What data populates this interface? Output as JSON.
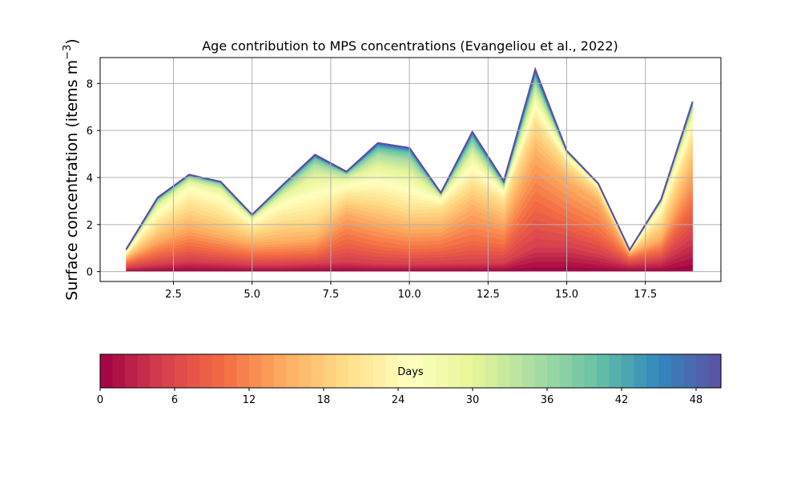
{
  "chart_data": {
    "type": "area",
    "title": "Age contribution to MPS concentrations (Evangeliou et al., 2022)",
    "xlabel": "",
    "ylabel_main": "Surface concentration (items m",
    "ylabel_sup": "−3",
    "ylabel_close": ")",
    "xlim": [
      0.17,
      19.9
    ],
    "ylim": [
      -0.42,
      9.1
    ],
    "xticks": [
      2.5,
      5.0,
      7.5,
      10.0,
      12.5,
      15.0,
      17.5
    ],
    "xtick_labels": [
      "2.5",
      "5.0",
      "7.5",
      "10.0",
      "12.5",
      "15.0",
      "17.5"
    ],
    "yticks": [
      0,
      2,
      4,
      6,
      8
    ],
    "ytick_labels": [
      "0",
      "2",
      "4",
      "6",
      "8"
    ],
    "grid": true,
    "x": [
      1,
      2,
      3,
      4,
      5,
      6,
      7,
      8,
      9,
      10,
      11,
      12,
      13,
      14,
      15,
      16,
      17,
      18,
      19
    ],
    "totals": [
      0.95,
      3.15,
      4.12,
      3.82,
      2.42,
      3.72,
      4.97,
      4.25,
      5.47,
      5.26,
      3.35,
      5.94,
      3.85,
      8.59,
      5.14,
      3.75,
      0.92,
      3.07,
      7.22
    ],
    "day_count": 50,
    "cumulative_fractions": {
      "days": [
        0,
        5,
        10,
        15,
        20,
        25,
        30,
        35,
        40,
        45,
        50
      ],
      "profiles": [
        [
          0,
          0.18,
          0.4,
          0.6,
          0.75,
          0.87,
          0.93,
          0.97,
          0.99,
          1,
          1
        ],
        [
          0,
          0.1,
          0.25,
          0.42,
          0.62,
          0.8,
          0.9,
          0.95,
          0.98,
          0.995,
          1
        ],
        [
          0,
          0.11,
          0.27,
          0.45,
          0.68,
          0.86,
          0.93,
          0.97,
          0.99,
          0.995,
          1
        ],
        [
          0,
          0.1,
          0.24,
          0.4,
          0.62,
          0.82,
          0.92,
          0.96,
          0.99,
          0.995,
          1
        ],
        [
          0,
          0.12,
          0.3,
          0.5,
          0.72,
          0.88,
          0.94,
          0.97,
          0.99,
          0.995,
          1
        ],
        [
          0,
          0.08,
          0.2,
          0.35,
          0.58,
          0.78,
          0.88,
          0.94,
          0.98,
          0.995,
          1
        ],
        [
          0,
          0.07,
          0.16,
          0.28,
          0.46,
          0.66,
          0.82,
          0.92,
          0.97,
          0.99,
          1
        ],
        [
          0,
          0.1,
          0.33,
          0.58,
          0.74,
          0.86,
          0.93,
          0.97,
          0.99,
          0.995,
          1
        ],
        [
          0,
          0.06,
          0.2,
          0.38,
          0.55,
          0.7,
          0.82,
          0.91,
          0.96,
          0.99,
          1
        ],
        [
          0,
          0.06,
          0.18,
          0.34,
          0.5,
          0.66,
          0.8,
          0.9,
          0.96,
          0.99,
          1
        ],
        [
          0,
          0.1,
          0.3,
          0.55,
          0.8,
          0.91,
          0.95,
          0.98,
          0.99,
          0.995,
          1
        ],
        [
          0,
          0.06,
          0.22,
          0.45,
          0.62,
          0.75,
          0.84,
          0.91,
          0.96,
          0.99,
          1
        ],
        [
          0,
          0.1,
          0.3,
          0.55,
          0.78,
          0.88,
          0.92,
          0.95,
          0.97,
          0.99,
          1
        ],
        [
          0,
          0.12,
          0.35,
          0.58,
          0.74,
          0.82,
          0.88,
          0.93,
          0.96,
          0.985,
          1
        ],
        [
          0,
          0.2,
          0.45,
          0.75,
          0.9,
          0.95,
          0.98,
          0.99,
          0.995,
          1,
          1
        ],
        [
          0,
          0.2,
          0.45,
          0.8,
          0.93,
          0.97,
          0.99,
          0.995,
          1,
          1,
          1
        ],
        [
          0,
          0.35,
          0.65,
          0.85,
          0.95,
          0.98,
          0.99,
          1,
          1,
          1,
          1
        ],
        [
          0,
          0.15,
          0.3,
          0.45,
          0.7,
          0.88,
          0.95,
          0.98,
          0.99,
          1,
          1
        ],
        [
          0,
          0.2,
          0.4,
          0.6,
          0.78,
          0.88,
          0.94,
          0.97,
          0.99,
          1,
          1
        ]
      ]
    },
    "colorbar": {
      "label": "Days",
      "min": 0,
      "max": 50,
      "ticks": [
        0,
        6,
        12,
        18,
        24,
        30,
        36,
        42,
        48
      ],
      "tick_labels": [
        "0",
        "6",
        "12",
        "18",
        "24",
        "30",
        "36",
        "42",
        "48"
      ],
      "colormap": "Spectral",
      "stops": [
        "#9e0142",
        "#d53e4f",
        "#f46d43",
        "#fdae61",
        "#fee08b",
        "#ffffbf",
        "#e6f598",
        "#abdda4",
        "#66c2a5",
        "#3288bd",
        "#5e4fa2"
      ]
    }
  }
}
